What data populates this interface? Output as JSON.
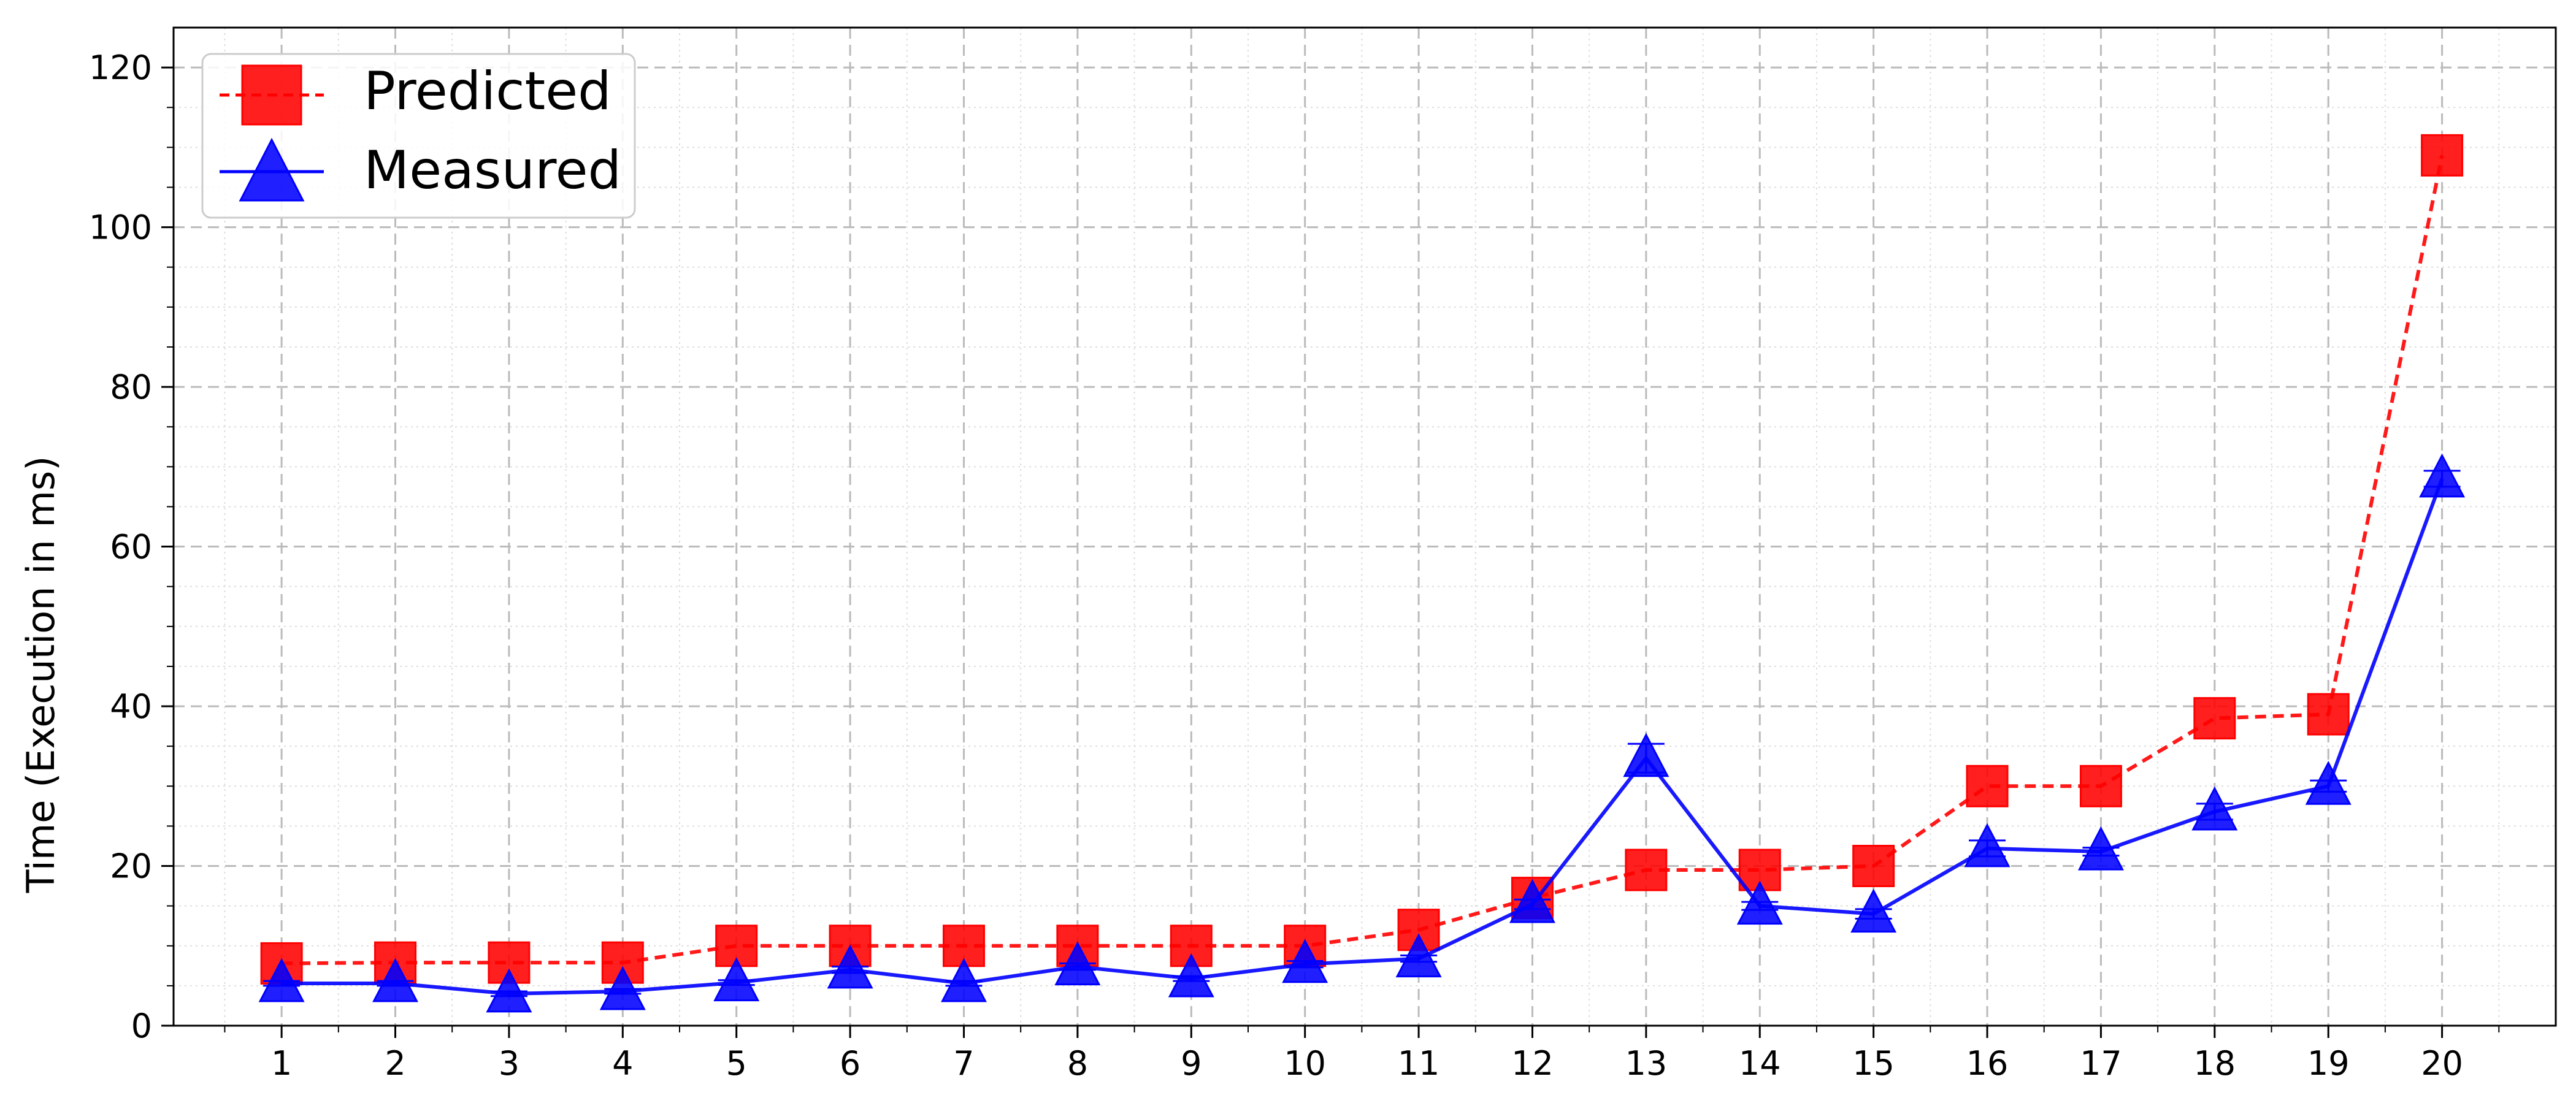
{
  "chart_data": {
    "type": "line",
    "title": "",
    "xlabel": "",
    "ylabel": "Time (Execution in ms)",
    "x": [
      1,
      2,
      3,
      4,
      5,
      6,
      7,
      8,
      9,
      10,
      11,
      12,
      13,
      14,
      15,
      16,
      17,
      18,
      19,
      20
    ],
    "xlim": [
      0.05,
      21.0
    ],
    "ylim": [
      0,
      125
    ],
    "yticks": [
      0,
      20,
      40,
      60,
      80,
      100,
      120
    ],
    "grid": true,
    "legend_position": "top-left",
    "series": [
      {
        "name": "Predicted",
        "color": "#ff0000",
        "line_style": "dashed",
        "marker": "square",
        "values": [
          7.8,
          7.9,
          7.9,
          7.9,
          10.0,
          10.0,
          10.0,
          10.0,
          10.0,
          10.0,
          12.0,
          16.0,
          19.5,
          19.5,
          20.0,
          30.0,
          30.0,
          38.5,
          39.0,
          109.0
        ]
      },
      {
        "name": "Measured",
        "color": "#0000ff",
        "line_style": "solid",
        "marker": "triangle",
        "values": [
          5.3,
          5.3,
          4.0,
          4.3,
          5.4,
          7.0,
          5.3,
          7.4,
          5.9,
          7.7,
          8.4,
          15.2,
          33.5,
          15.0,
          14.0,
          22.2,
          21.8,
          26.8,
          30.0,
          68.5
        ],
        "errors": [
          0.3,
          0.3,
          0.3,
          0.3,
          0.3,
          0.4,
          0.3,
          0.4,
          0.3,
          0.4,
          0.4,
          0.6,
          1.8,
          0.5,
          0.6,
          1.0,
          0.5,
          1.0,
          0.7,
          1.0
        ]
      }
    ]
  }
}
